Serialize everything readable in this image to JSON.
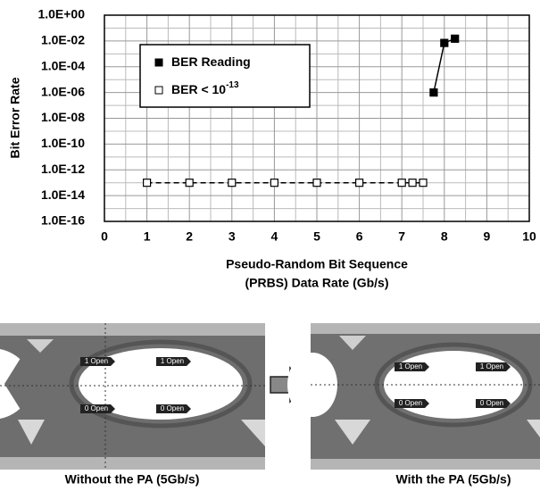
{
  "chart_data": {
    "type": "line",
    "ylabel": "Bit Error Rate",
    "xlabel": [
      "Pseudo-Random Bit Sequence",
      "(PRBS) Data Rate (Gb/s)"
    ],
    "xlim": [
      0,
      10
    ],
    "xticks": [
      0,
      1,
      2,
      3,
      4,
      5,
      6,
      7,
      8,
      9,
      10
    ],
    "ylim": [
      1e-16,
      1
    ],
    "log_y": true,
    "grid": true,
    "yticks": [
      {
        "value": 1e-16,
        "label": "1.0E-16"
      },
      {
        "value": 1e-14,
        "label": "1.0E-14"
      },
      {
        "value": 1e-12,
        "label": "1.0E-12"
      },
      {
        "value": 1e-10,
        "label": "1.0E-10"
      },
      {
        "value": 1e-08,
        "label": "1.0E-08"
      },
      {
        "value": 1e-06,
        "label": "1.0E-06"
      },
      {
        "value": 0.0001,
        "label": "1.0E-04"
      },
      {
        "value": 0.01,
        "label": "1.0E-02"
      },
      {
        "value": 1,
        "label": "1.0E+00"
      }
    ],
    "series": [
      {
        "name": "BER Reading",
        "color": "#000000",
        "marker": "filled",
        "dashed": false,
        "x": [
          7.75,
          8.0,
          8.25
        ],
        "values": [
          1e-06,
          0.007,
          0.015
        ]
      },
      {
        "name": "BER < 10",
        "name_superscript": "-13",
        "color": "#000000",
        "marker": "hollow",
        "dashed": true,
        "x": [
          1,
          2,
          3,
          4,
          5,
          6,
          7,
          7.25,
          7.5
        ],
        "values": [
          1e-13,
          1e-13,
          1e-13,
          1e-13,
          1e-13,
          1e-13,
          1e-13,
          1e-13,
          1e-13
        ]
      }
    ]
  },
  "eye_diagrams": {
    "left": {
      "caption": "Without the PA (5Gb/s)",
      "tags": [
        "1 Open",
        "1 Open",
        "0 Open",
        "0 Open"
      ]
    },
    "right": {
      "caption": "With the PA (5Gb/s)",
      "tags": [
        "1 Open",
        "1 Open",
        "0 Open",
        "0 Open"
      ]
    }
  }
}
